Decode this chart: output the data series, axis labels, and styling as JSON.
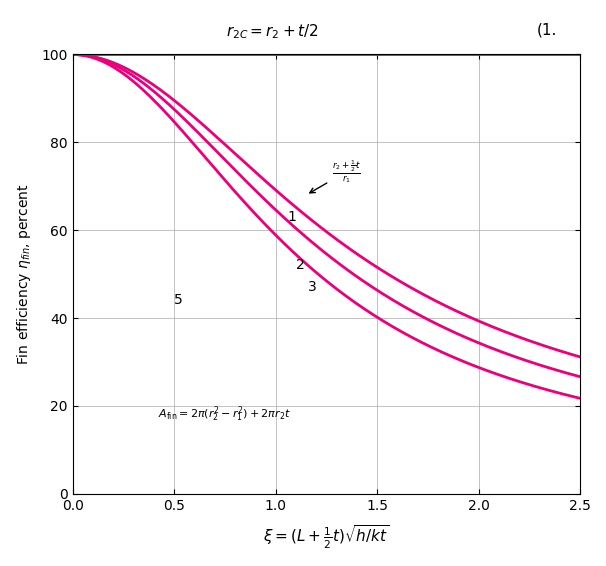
{
  "title_top": "r_{2C} = r_2 + t/2",
  "xlabel": "\\xi = (L + \\frac{1}{2}t)\\sqrt{h/kt}",
  "ylabel": "Fin efficiency \\eta_{fin}, percent",
  "xlim": [
    0,
    2.5
  ],
  "ylim": [
    0,
    100
  ],
  "xticks": [
    0,
    0.5,
    1.0,
    1.5,
    2.0,
    2.5
  ],
  "yticks": [
    0,
    20,
    40,
    60,
    80,
    100
  ],
  "curve_color": "#E8007D",
  "curve_linewidth": 2.0,
  "r_ratios": [
    1.0,
    2.0,
    3.0,
    5.0
  ],
  "curve_labels": [
    "1",
    "2",
    "3",
    "5"
  ],
  "label_r2r1": "r_2 + \\frac{1}{2}t / r_1",
  "bg_color": "#FFFFFF",
  "grid_color": "#AAAAAA"
}
